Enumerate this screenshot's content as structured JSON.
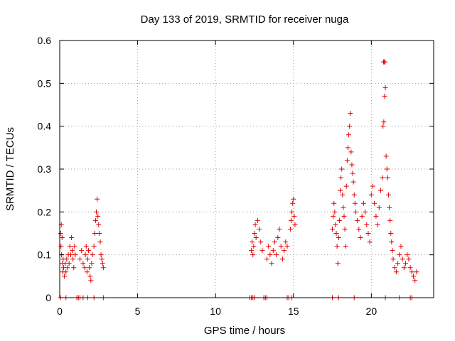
{
  "chart_data": {
    "type": "scatter",
    "title": "Day 133 of 2019, SRMTID for receiver nuga",
    "xlabel": "GPS time / hours",
    "ylabel": "SRMTID / TECUs",
    "xlim": [
      0,
      24
    ],
    "ylim": [
      0,
      0.6
    ],
    "xticks": [
      0,
      5,
      10,
      15,
      20
    ],
    "xtick_labels": [
      "0",
      "5",
      "10",
      "15",
      "20"
    ],
    "yticks": [
      0,
      0.1,
      0.2,
      0.3,
      0.4,
      0.5,
      0.6
    ],
    "ytick_labels": [
      "0",
      "0.1",
      "0.2",
      "0.3",
      "0.4",
      "0.5",
      "0.6"
    ],
    "grid": true,
    "marker": "+",
    "color": "#e00000",
    "series": [
      {
        "name": "SRMTID",
        "points": [
          [
            0.05,
            0.15
          ],
          [
            0.08,
            0.12
          ],
          [
            0.1,
            0.17
          ],
          [
            0.12,
            0.1
          ],
          [
            0.15,
            0.14
          ],
          [
            0.18,
            0.08
          ],
          [
            0.2,
            0.06
          ],
          [
            0.22,
            0.09
          ],
          [
            0.25,
            0.07
          ],
          [
            0.3,
            0.05
          ],
          [
            0.35,
            0.08
          ],
          [
            0.4,
            0.06
          ],
          [
            0.45,
            0.09
          ],
          [
            0.5,
            0.07
          ],
          [
            0.55,
            0.1
          ],
          [
            0.6,
            0.08
          ],
          [
            0.65,
            0.12
          ],
          [
            0.7,
            0.1
          ],
          [
            0.75,
            0.14
          ],
          [
            0.8,
            0.11
          ],
          [
            0.85,
            0.09
          ],
          [
            0.9,
            0.07
          ],
          [
            0.95,
            0.12
          ],
          [
            1.0,
            0.1
          ],
          [
            1.3,
            0.09
          ],
          [
            1.4,
            0.11
          ],
          [
            1.5,
            0.08
          ],
          [
            1.6,
            0.07
          ],
          [
            1.65,
            0.1
          ],
          [
            1.7,
            0.12
          ],
          [
            1.75,
            0.06
          ],
          [
            1.8,
            0.09
          ],
          [
            1.85,
            0.11
          ],
          [
            1.9,
            0.07
          ],
          [
            1.95,
            0.05
          ],
          [
            2.0,
            0.04
          ],
          [
            2.05,
            0.08
          ],
          [
            2.1,
            0.1
          ],
          [
            2.2,
            0.12
          ],
          [
            2.25,
            0.15
          ],
          [
            2.3,
            0.18
          ],
          [
            2.35,
            0.2
          ],
          [
            2.4,
            0.23
          ],
          [
            2.45,
            0.19
          ],
          [
            2.5,
            0.17
          ],
          [
            2.55,
            0.15
          ],
          [
            2.6,
            0.13
          ],
          [
            2.65,
            0.1
          ],
          [
            2.7,
            0.09
          ],
          [
            2.75,
            0.08
          ],
          [
            2.8,
            0.07
          ],
          [
            12.3,
            0.11
          ],
          [
            12.35,
            0.13
          ],
          [
            12.4,
            0.1
          ],
          [
            12.45,
            0.12
          ],
          [
            12.5,
            0.15
          ],
          [
            12.55,
            0.17
          ],
          [
            12.6,
            0.14
          ],
          [
            12.7,
            0.18
          ],
          [
            12.8,
            0.16
          ],
          [
            12.9,
            0.13
          ],
          [
            13.0,
            0.11
          ],
          [
            13.3,
            0.09
          ],
          [
            13.4,
            0.12
          ],
          [
            13.5,
            0.1
          ],
          [
            13.6,
            0.08
          ],
          [
            13.7,
            0.11
          ],
          [
            13.8,
            0.13
          ],
          [
            13.9,
            0.1
          ],
          [
            14.0,
            0.14
          ],
          [
            14.1,
            0.16
          ],
          [
            14.2,
            0.12
          ],
          [
            14.3,
            0.09
          ],
          [
            14.4,
            0.11
          ],
          [
            14.5,
            0.13
          ],
          [
            14.6,
            0.12
          ],
          [
            14.8,
            0.16
          ],
          [
            14.85,
            0.18
          ],
          [
            14.9,
            0.2
          ],
          [
            14.95,
            0.22
          ],
          [
            15.0,
            0.23
          ],
          [
            15.05,
            0.19
          ],
          [
            15.1,
            0.17
          ],
          [
            17.5,
            0.16
          ],
          [
            17.55,
            0.19
          ],
          [
            17.6,
            0.22
          ],
          [
            17.65,
            0.2
          ],
          [
            17.7,
            0.17
          ],
          [
            17.75,
            0.15
          ],
          [
            17.8,
            0.12
          ],
          [
            17.85,
            0.08
          ],
          [
            17.9,
            0.14
          ],
          [
            17.95,
            0.18
          ],
          [
            18.0,
            0.25
          ],
          [
            18.05,
            0.28
          ],
          [
            18.1,
            0.3
          ],
          [
            18.15,
            0.24
          ],
          [
            18.2,
            0.21
          ],
          [
            18.25,
            0.19
          ],
          [
            18.3,
            0.16
          ],
          [
            18.35,
            0.12
          ],
          [
            18.4,
            0.26
          ],
          [
            18.45,
            0.32
          ],
          [
            18.5,
            0.35
          ],
          [
            18.55,
            0.38
          ],
          [
            18.6,
            0.4
          ],
          [
            18.65,
            0.43
          ],
          [
            18.7,
            0.34
          ],
          [
            18.75,
            0.31
          ],
          [
            18.8,
            0.29
          ],
          [
            18.85,
            0.27
          ],
          [
            18.9,
            0.24
          ],
          [
            18.95,
            0.22
          ],
          [
            19.0,
            0.2
          ],
          [
            19.1,
            0.18
          ],
          [
            19.2,
            0.16
          ],
          [
            19.3,
            0.14
          ],
          [
            19.4,
            0.19
          ],
          [
            19.5,
            0.22
          ],
          [
            19.6,
            0.2
          ],
          [
            19.7,
            0.17
          ],
          [
            19.8,
            0.15
          ],
          [
            19.9,
            0.13
          ],
          [
            20.0,
            0.24
          ],
          [
            20.1,
            0.26
          ],
          [
            20.2,
            0.22
          ],
          [
            20.3,
            0.19
          ],
          [
            20.4,
            0.17
          ],
          [
            20.5,
            0.21
          ],
          [
            20.6,
            0.25
          ],
          [
            20.7,
            0.28
          ],
          [
            20.75,
            0.4
          ],
          [
            20.8,
            0.41
          ],
          [
            20.85,
            0.47
          ],
          [
            20.9,
            0.49
          ],
          [
            20.78,
            0.55
          ],
          [
            20.82,
            0.55
          ],
          [
            20.88,
            0.55
          ],
          [
            20.95,
            0.33
          ],
          [
            21.0,
            0.3
          ],
          [
            21.05,
            0.28
          ],
          [
            21.1,
            0.24
          ],
          [
            21.15,
            0.21
          ],
          [
            21.2,
            0.18
          ],
          [
            21.25,
            0.15
          ],
          [
            21.3,
            0.13
          ],
          [
            21.35,
            0.11
          ],
          [
            21.4,
            0.09
          ],
          [
            21.5,
            0.07
          ],
          [
            21.6,
            0.06
          ],
          [
            21.7,
            0.08
          ],
          [
            21.8,
            0.1
          ],
          [
            21.9,
            0.12
          ],
          [
            22.0,
            0.09
          ],
          [
            22.1,
            0.07
          ],
          [
            22.2,
            0.08
          ],
          [
            22.3,
            0.1
          ],
          [
            22.4,
            0.09
          ],
          [
            22.5,
            0.07
          ],
          [
            22.6,
            0.06
          ],
          [
            22.7,
            0.05
          ],
          [
            22.8,
            0.04
          ],
          [
            22.9,
            0.06
          ],
          [
            0.05,
            0.0
          ],
          [
            0.4,
            0.0
          ],
          [
            1.1,
            0.0
          ],
          [
            1.2,
            0.0
          ],
          [
            1.3,
            0.0
          ],
          [
            1.5,
            0.0
          ],
          [
            1.8,
            0.0
          ],
          [
            2.2,
            0.0
          ],
          [
            2.8,
            0.0
          ],
          [
            12.2,
            0.0
          ],
          [
            12.3,
            0.0
          ],
          [
            12.4,
            0.0
          ],
          [
            12.5,
            0.0
          ],
          [
            13.1,
            0.0
          ],
          [
            13.2,
            0.0
          ],
          [
            13.3,
            0.0
          ],
          [
            14.6,
            0.0
          ],
          [
            14.7,
            0.0
          ],
          [
            14.9,
            0.0
          ],
          [
            17.5,
            0.0
          ],
          [
            17.9,
            0.0
          ],
          [
            18.9,
            0.0
          ],
          [
            20.9,
            0.0
          ],
          [
            21.8,
            0.0
          ],
          [
            22.5,
            0.0
          ],
          [
            22.6,
            0.0
          ]
        ]
      }
    ]
  }
}
